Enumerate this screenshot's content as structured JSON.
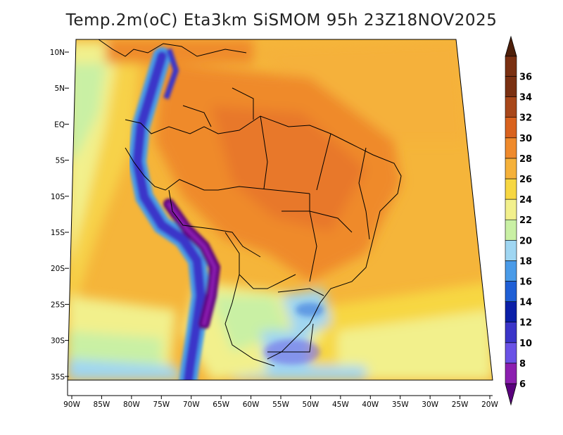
{
  "title": "Temp.2m(oC) Eta3km SiSMOM 95h 23Z18NOV2025",
  "variable": "Temp.2m",
  "units": "oC",
  "model": "Eta3km",
  "forecast": "SiSMOM 95h",
  "valid_time": "23Z18NOV2025",
  "lat_labels": [
    "10N",
    "5N",
    "EQ",
    "5S",
    "10S",
    "15S",
    "20S",
    "25S",
    "30S",
    "35S"
  ],
  "lon_labels": [
    "90W",
    "85W",
    "80W",
    "75W",
    "70W",
    "65W",
    "60W",
    "55W",
    "50W",
    "45W",
    "40W",
    "35W",
    "30W",
    "25W",
    "20W"
  ],
  "colorbar": {
    "levels": [
      "6",
      "8",
      "10",
      "12",
      "14",
      "16",
      "18",
      "20",
      "22",
      "24",
      "26",
      "28",
      "30",
      "32",
      "34",
      "36"
    ],
    "colors": [
      "#5a007d",
      "#8c1fb0",
      "#6a52e6",
      "#3b35c9",
      "#0b1fa8",
      "#1f5fd6",
      "#4a9be8",
      "#9fd6f2",
      "#c9f0a4",
      "#f2f08c",
      "#f7d742",
      "#f5b13a",
      "#ef8a2c",
      "#d9621e",
      "#a8471a",
      "#7a3012",
      "#4e1f0a"
    ]
  },
  "chart_data": {
    "type": "heatmap",
    "title": "Temp.2m(oC) Eta3km SiSMOM 95h 23Z18NOV2025",
    "x_range_deg_lon": [
      -90,
      -20
    ],
    "y_range_deg_lat": [
      -37,
      11
    ],
    "colorbar_range": [
      6,
      36
    ],
    "colorbar_interval": 2
  }
}
